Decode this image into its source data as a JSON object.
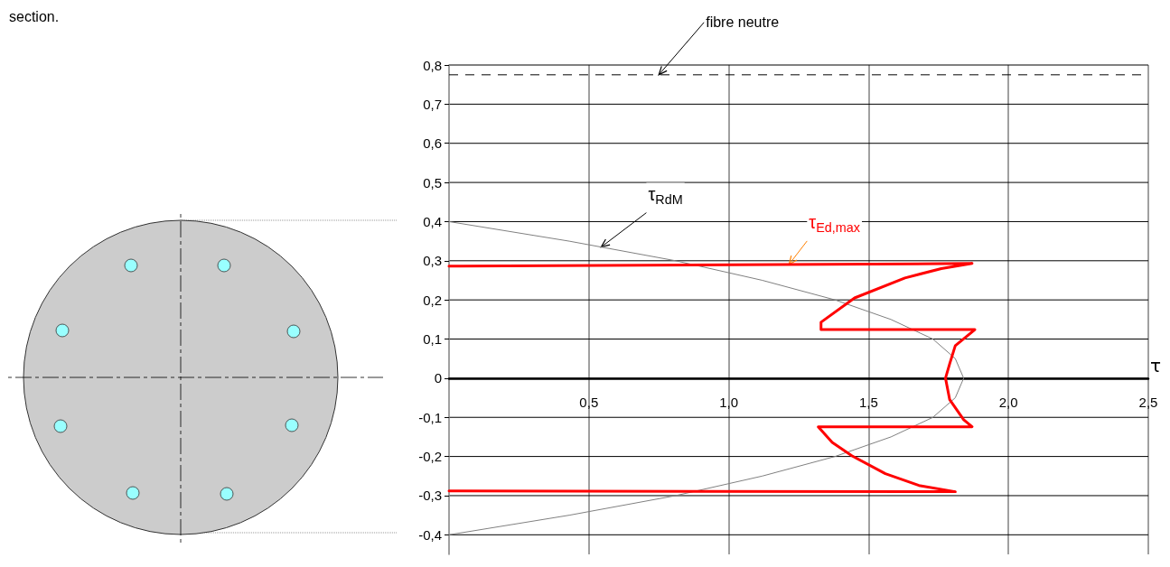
{
  "chart_data": {
    "type": "line",
    "xlabel": "τ",
    "annotations": [
      "section."
    ],
    "series": [
      {
        "name": "τ$_{RdM}$",
        "color": "#808080",
        "x": [
          0,
          0.43,
          0.81,
          1.12,
          1.38,
          1.58,
          1.73,
          1.81,
          1.84,
          1.81,
          1.73,
          1.58,
          1.38,
          1.12,
          0.81,
          0.43,
          0
        ],
        "values": [
          0.4,
          0.35,
          0.3,
          0.25,
          0.2,
          0.15,
          0.1,
          0.05,
          0,
          -0.05,
          -0.1,
          -0.15,
          -0.2,
          -0.25,
          -0.3,
          -0.35,
          -0.4
        ]
      },
      {
        "name": "τ$_{Ed,max}$",
        "color": "#ff0000",
        "x": [
          0,
          1.87,
          1.76,
          1.63,
          1.45,
          1.33,
          1.33,
          1.88,
          1.81,
          1.79,
          1.775,
          1.79,
          1.84,
          1.87,
          1.32,
          1.37,
          1.44,
          1.56,
          1.68,
          1.81,
          0
        ],
        "values": [
          0.286,
          0.293,
          0.28,
          0.256,
          0.205,
          0.143,
          0.124,
          0.124,
          0.083,
          0.037,
          0,
          -0.055,
          -0.106,
          -0.124,
          -0.124,
          -0.164,
          -0.198,
          -0.244,
          -0.274,
          -0.29,
          -0.288
        ]
      }
    ],
    "xlim": [
      0,
      2.5
    ],
    "xticks": [
      {
        "value": 0.5,
        "label": "0,5"
      },
      {
        "value": 1,
        "label": "1,0"
      },
      {
        "value": 1.5,
        "label": "1,5"
      },
      {
        "value": 2,
        "label": "2,0"
      },
      {
        "value": 2.5,
        "label": "2,5"
      }
    ],
    "ylim": [
      -0.45,
      0.8
    ],
    "yticks": [
      {
        "value": -0.4,
        "label": "-0,4"
      },
      {
        "value": -0.3,
        "label": "-0,3"
      },
      {
        "value": -0.2,
        "label": "-0,2"
      },
      {
        "value": -0.1,
        "label": "-0,1"
      },
      0,
      {
        "value": 0.1,
        "label": "0,1"
      },
      {
        "value": 0.2,
        "label": "0,2"
      },
      {
        "value": 0.3,
        "label": "0,3"
      },
      {
        "value": 0.4,
        "label": "0,4"
      },
      {
        "value": 0.5,
        "label": "0,5"
      },
      {
        "value": 0.6,
        "label": "0,6"
      },
      {
        "value": 0.7,
        "label": "0,7"
      },
      {
        "value": 0.8,
        "label": "0,8"
      }
    ],
    "ref_lines": [
      {
        "axis": "y",
        "value": 0.775,
        "label": "fibre neutre",
        "color": "#000000",
        "line_style": "dashed"
      }
    ],
    "grid": true,
    "marker": "none",
    "line_style": "solid"
  }
}
